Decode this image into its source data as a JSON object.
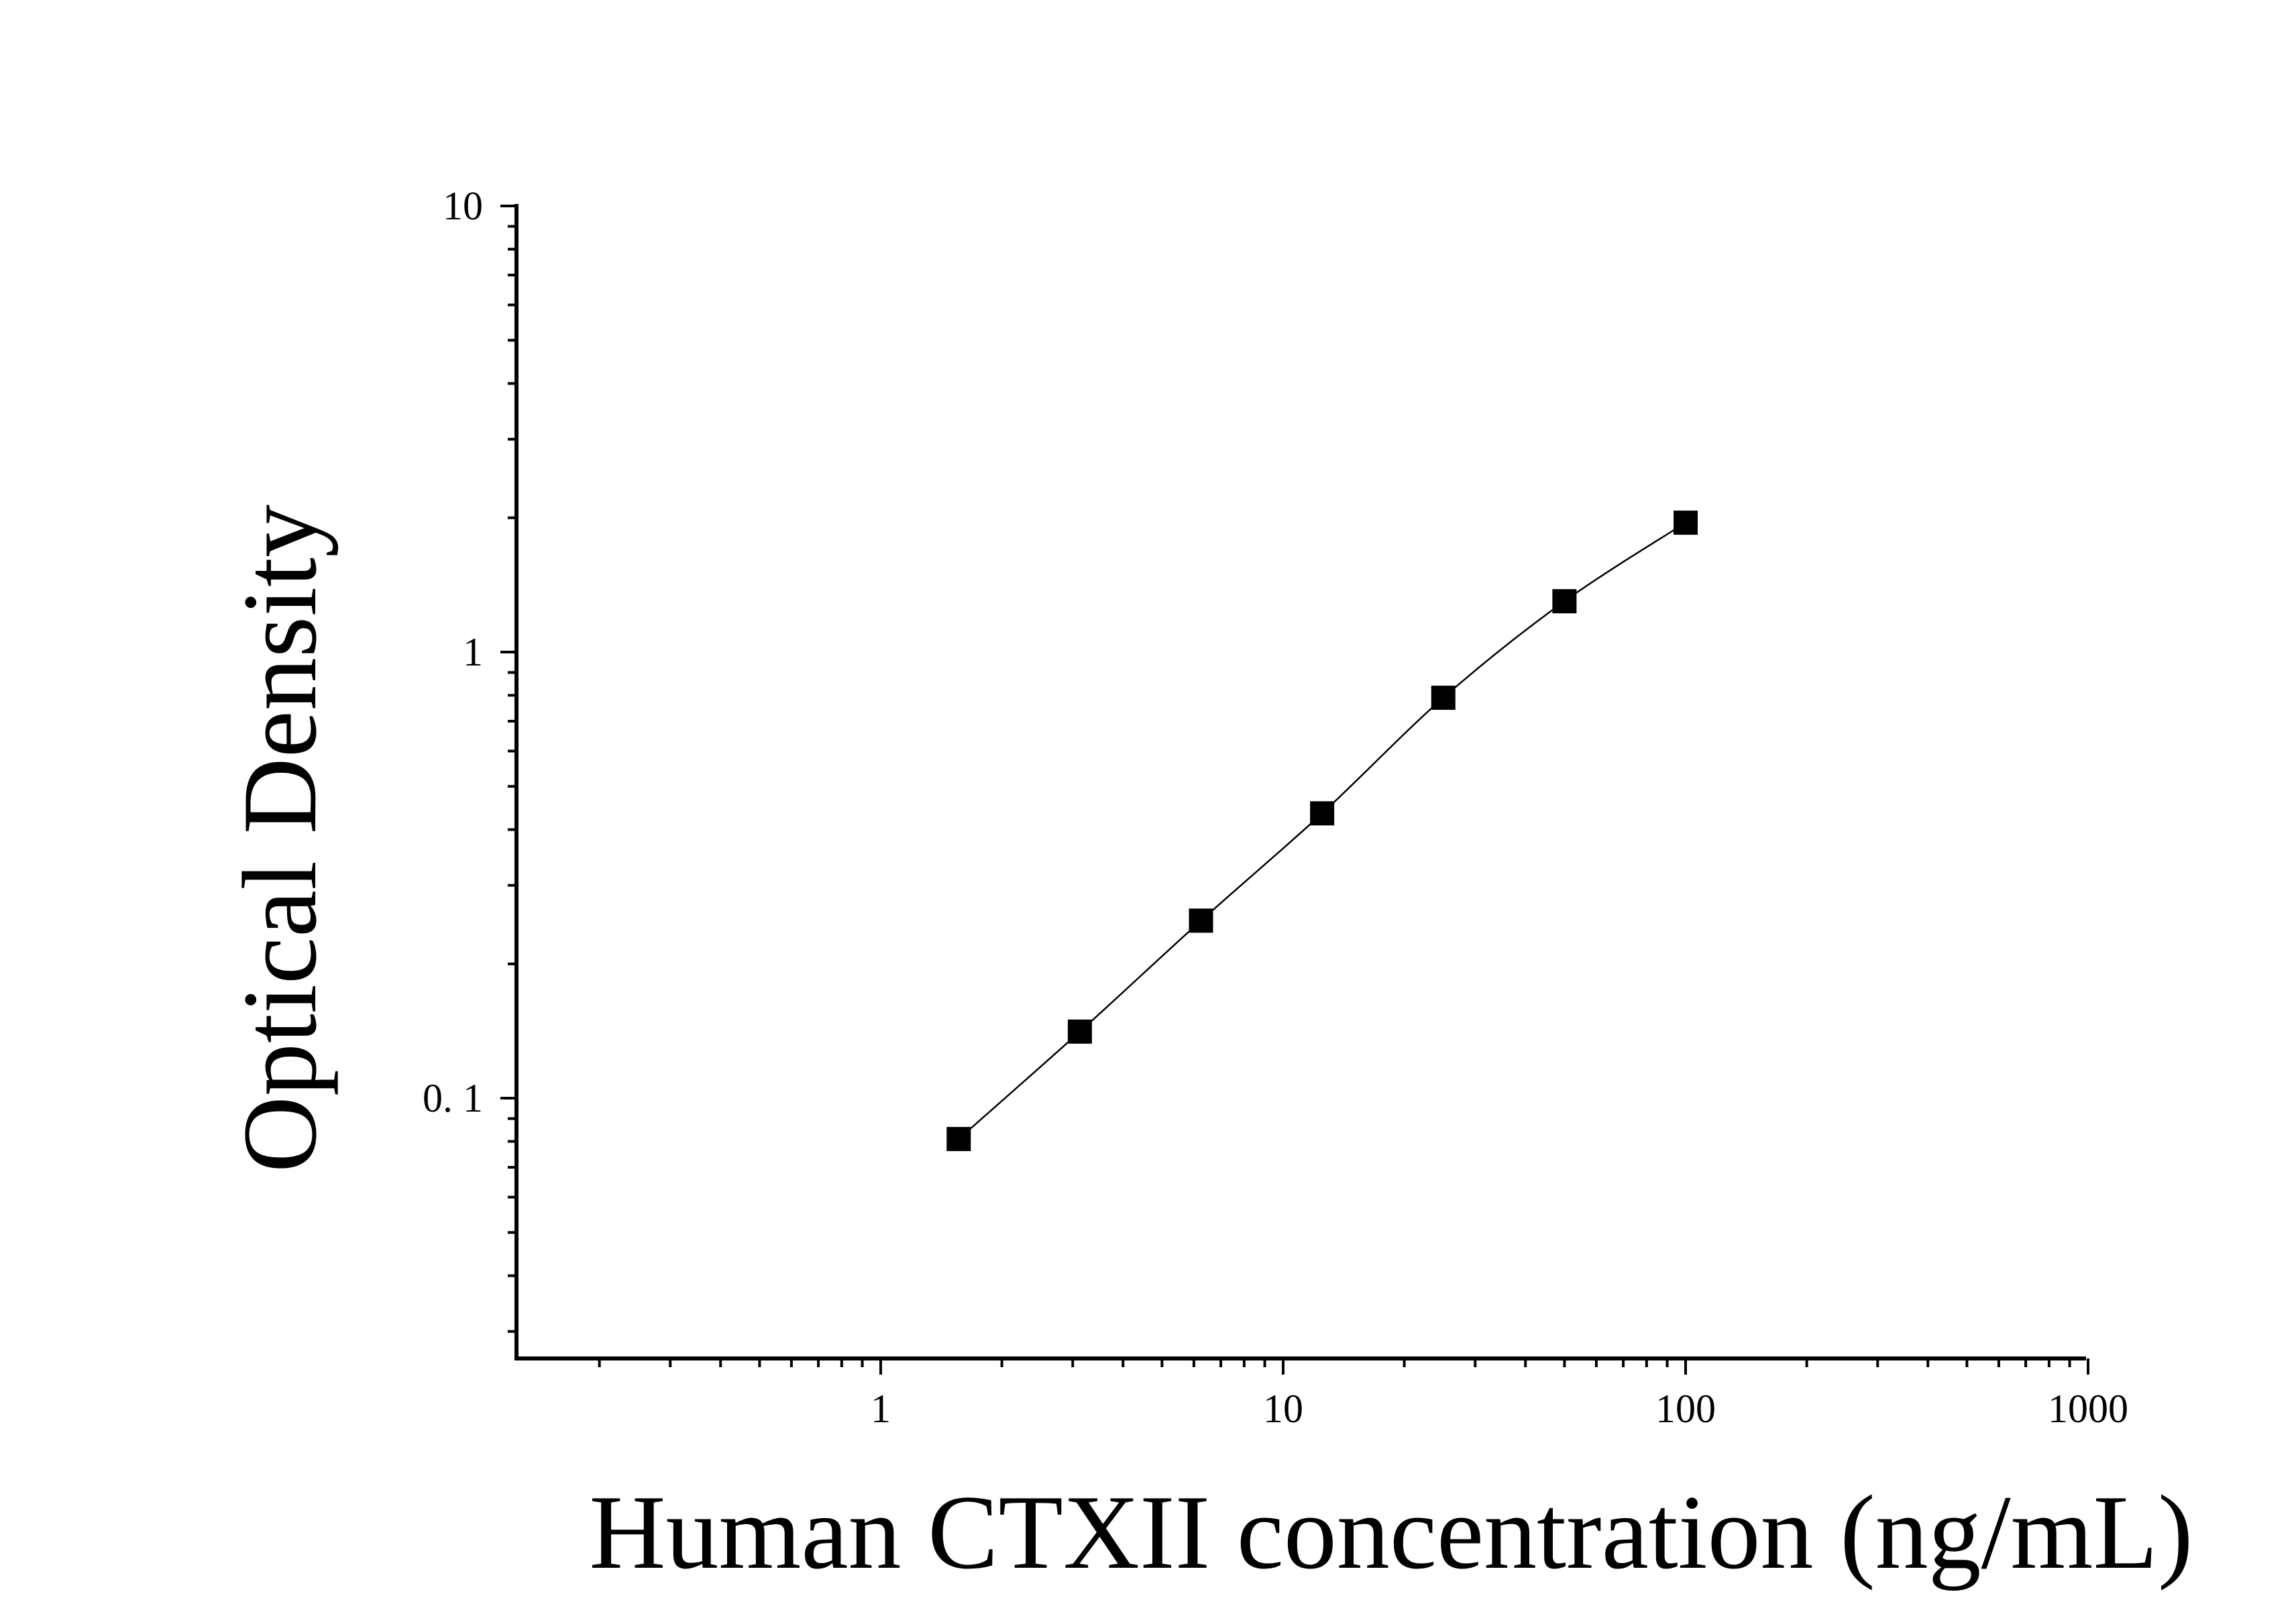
{
  "chart_data": {
    "type": "scatter",
    "xlabel": "Human CTXII concentration (ng/mL)",
    "ylabel": "Optical Density",
    "x_scale": "log",
    "y_scale": "log",
    "xlim": [
      0.13,
      1000
    ],
    "ylim": [
      0.025,
      10
    ],
    "x_ticks": [
      1,
      10,
      100,
      1000
    ],
    "x_tick_labels": [
      "1",
      "10",
      "100",
      "1000"
    ],
    "y_ticks": [
      0.1,
      1,
      10
    ],
    "y_tick_labels": [
      "0. 1",
      "1",
      "10"
    ],
    "grid": false,
    "legend": "none",
    "fit_curve": true,
    "marker": "square",
    "colors": {
      "marker": "#000000",
      "line": "#000000",
      "axis": "#000000"
    },
    "series": [
      {
        "x": [
          1.5625,
          3.125,
          6.25,
          12.5,
          25,
          50,
          100
        ],
        "y": [
          0.081,
          0.141,
          0.25,
          0.435,
          0.79,
          1.3,
          1.95
        ]
      }
    ]
  }
}
